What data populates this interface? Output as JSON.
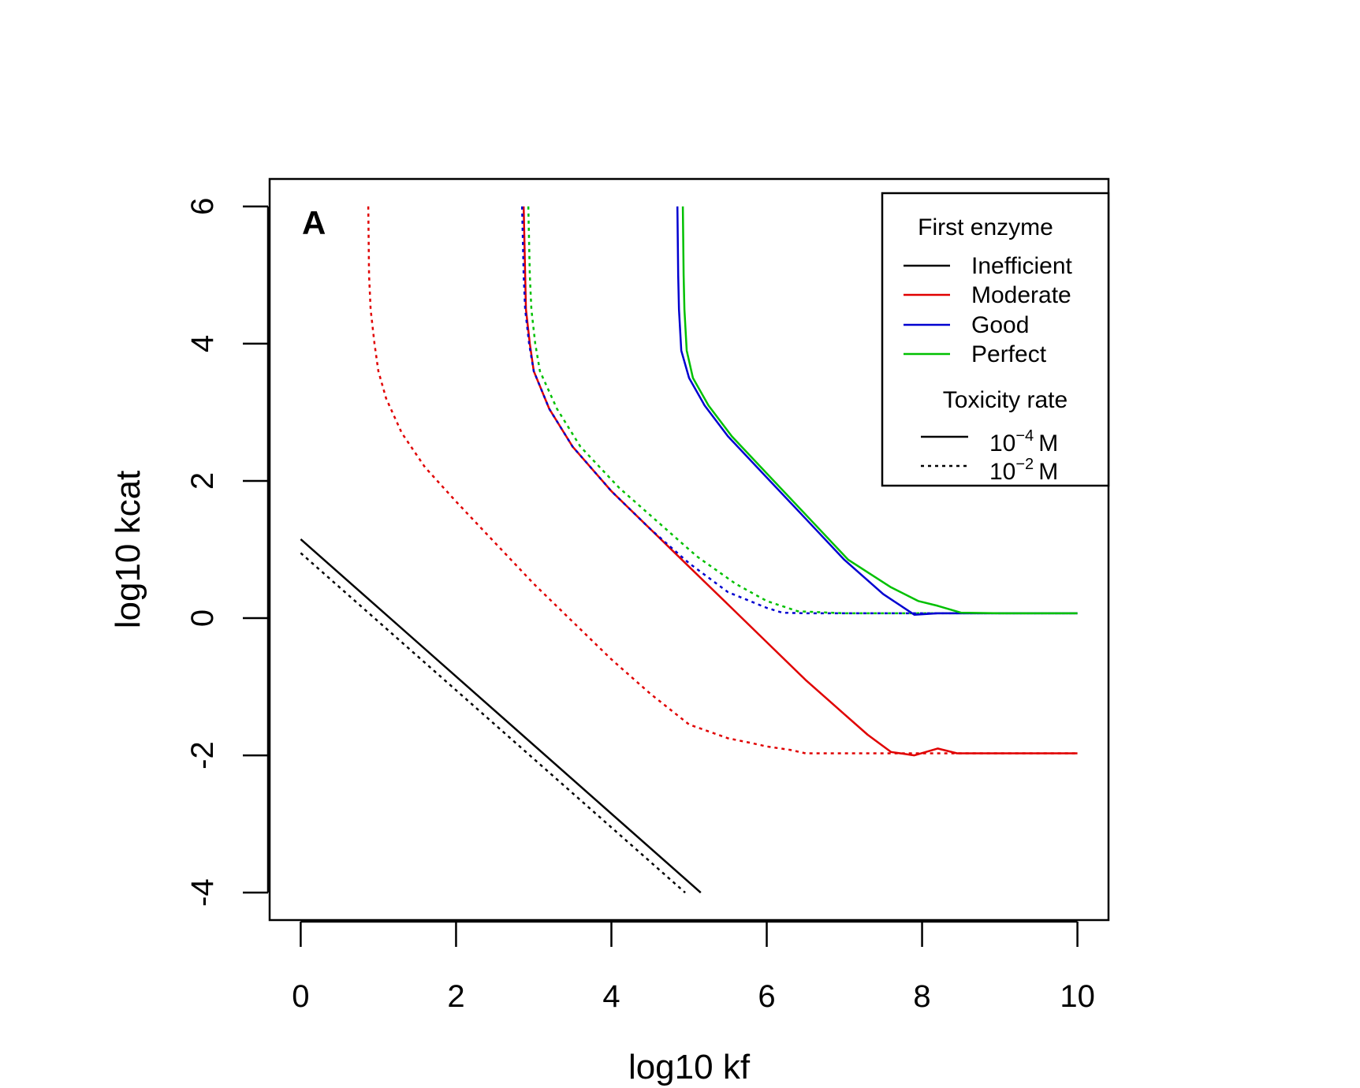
{
  "chart_data": {
    "type": "line",
    "panel_label": "A",
    "xlabel": "log10 kf",
    "ylabel": "log10 kcat",
    "xlim": [
      -0.4,
      10.4
    ],
    "ylim": [
      -4.4,
      6.4
    ],
    "x_ticks": [
      0,
      2,
      4,
      6,
      8,
      10
    ],
    "y_ticks": [
      -4,
      -2,
      0,
      2,
      4,
      6
    ],
    "grid": false,
    "legend": {
      "placement": "top-right",
      "enzyme_title": "First enzyme",
      "enzyme_entries": [
        {
          "label": "Inefficient",
          "color": "#000000"
        },
        {
          "label": "Moderate",
          "color": "#e00000"
        },
        {
          "label": "Good",
          "color": "#0000d0"
        },
        {
          "label": "Perfect",
          "color": "#00c000"
        }
      ],
      "toxicity_title": "Toxicity rate",
      "toxicity_entries": [
        {
          "base": "10",
          "exponent": "−4",
          "unit": "M",
          "style": "solid"
        },
        {
          "base": "10",
          "exponent": "−2",
          "unit": "M",
          "style": "dotted"
        }
      ]
    },
    "series": [
      {
        "name": "Inefficient, 10^-4 M",
        "color": "#000000",
        "style": "solid",
        "x": [
          0.0,
          5.15
        ],
        "y": [
          1.15,
          -4.0
        ]
      },
      {
        "name": "Inefficient, 10^-2 M",
        "color": "#000000",
        "style": "dotted",
        "x": [
          0.0,
          4.95
        ],
        "y": [
          0.95,
          -4.0
        ]
      },
      {
        "name": "Moderate, 10^-2 M",
        "color": "#e00000",
        "style": "dotted",
        "x": [
          0.87,
          0.88,
          0.9,
          0.95,
          1.0,
          1.1,
          1.3,
          1.6,
          2.0,
          2.5,
          3.0,
          3.5,
          4.0,
          4.5,
          5.0,
          5.5,
          5.8,
          6.0,
          6.3,
          6.5,
          7.0,
          8.0,
          9.0,
          10.0
        ],
        "y": [
          6.0,
          5.0,
          4.5,
          4.0,
          3.6,
          3.2,
          2.7,
          2.2,
          1.7,
          1.1,
          0.5,
          -0.05,
          -0.6,
          -1.1,
          -1.55,
          -1.75,
          -1.82,
          -1.87,
          -1.92,
          -1.97,
          -1.97,
          -1.97,
          -1.97,
          -1.97
        ]
      },
      {
        "name": "Moderate, 10^-4 M",
        "color": "#e00000",
        "style": "solid",
        "x": [
          2.87,
          2.89,
          2.9,
          2.95,
          3.0,
          3.2,
          3.5,
          4.0,
          4.5,
          5.0,
          5.5,
          6.0,
          6.5,
          7.0,
          7.3,
          7.6,
          7.9,
          8.2,
          8.45,
          8.5,
          9.0,
          10.0
        ],
        "y": [
          6.0,
          5.0,
          4.5,
          4.0,
          3.6,
          3.05,
          2.5,
          1.85,
          1.3,
          0.75,
          0.2,
          -0.35,
          -0.9,
          -1.4,
          -1.7,
          -1.95,
          -2.0,
          -1.9,
          -1.97,
          -1.97,
          -1.97,
          -1.97
        ]
      },
      {
        "name": "Good, 10^-2 M",
        "color": "#0000d0",
        "style": "dotted",
        "x": [
          2.85,
          2.87,
          2.89,
          2.94,
          3.0,
          3.2,
          3.5,
          4.0,
          4.5,
          5.0,
          5.5,
          6.0,
          6.2,
          6.5,
          7.0,
          8.0,
          9.0,
          10.0
        ],
        "y": [
          6.0,
          5.0,
          4.5,
          4.0,
          3.6,
          3.05,
          2.5,
          1.85,
          1.3,
          0.8,
          0.38,
          0.15,
          0.08,
          0.07,
          0.07,
          0.07,
          0.07,
          0.07
        ]
      },
      {
        "name": "Perfect, 10^-2 M",
        "color": "#00c000",
        "style": "dotted",
        "x": [
          2.93,
          2.95,
          2.97,
          3.02,
          3.08,
          3.3,
          3.6,
          4.1,
          4.6,
          5.1,
          5.6,
          6.0,
          6.4,
          7.0,
          8.0,
          9.0,
          10.0
        ],
        "y": [
          6.0,
          5.0,
          4.5,
          4.0,
          3.6,
          3.05,
          2.5,
          1.9,
          1.4,
          0.9,
          0.5,
          0.25,
          0.1,
          0.07,
          0.07,
          0.07,
          0.07
        ]
      },
      {
        "name": "Good, 10^-4 M",
        "color": "#0000d0",
        "style": "solid",
        "x": [
          4.85,
          4.86,
          4.87,
          4.9,
          5.0,
          5.2,
          5.5,
          6.0,
          6.5,
          7.0,
          7.5,
          7.9,
          8.2,
          8.5,
          9.0,
          10.0
        ],
        "y": [
          6.0,
          5.0,
          4.5,
          3.9,
          3.5,
          3.1,
          2.65,
          2.05,
          1.45,
          0.85,
          0.35,
          0.05,
          0.07,
          0.07,
          0.07,
          0.07
        ]
      },
      {
        "name": "Perfect, 10^-4 M",
        "color": "#00c000",
        "style": "solid",
        "x": [
          4.92,
          4.93,
          4.94,
          4.97,
          5.05,
          5.25,
          5.55,
          6.05,
          6.55,
          7.05,
          7.6,
          7.95,
          8.2,
          8.5,
          9.0,
          10.0
        ],
        "y": [
          6.0,
          5.0,
          4.5,
          3.9,
          3.5,
          3.1,
          2.65,
          2.05,
          1.45,
          0.85,
          0.45,
          0.25,
          0.18,
          0.08,
          0.07,
          0.07
        ]
      }
    ]
  }
}
